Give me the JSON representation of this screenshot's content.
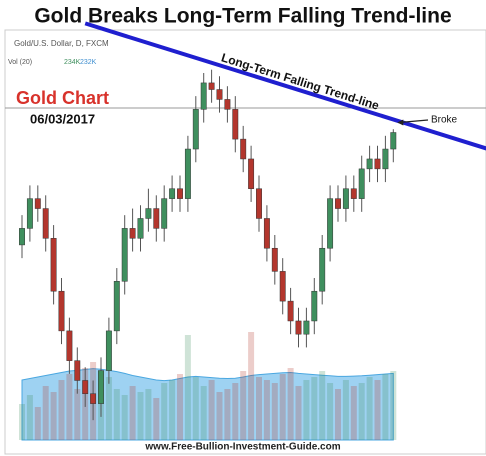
{
  "chart_data": {
    "type": "candlestick",
    "title": "Gold Breaks Long-Term Falling Trend-line",
    "header": "Gold/U.S. Dollar, D, FXCM",
    "volume_label": "Vol (20)",
    "volume_legend": [
      "234K",
      "232K"
    ],
    "chart_label": "Gold Chart",
    "date": "06/03/2017",
    "footer": "www.Free-Bullion-Investment-Guide.com",
    "ylim": [
      1186,
      1310
    ],
    "open": [
      1245,
      1250,
      1259,
      1256,
      1247,
      1231,
      1219,
      1210,
      1204,
      1200,
      1197,
      1207,
      1219,
      1234,
      1250,
      1247,
      1253,
      1256,
      1250,
      1259,
      1262,
      1259,
      1274,
      1286,
      1294,
      1292,
      1289,
      1286,
      1277,
      1271,
      1262,
      1253,
      1244,
      1237,
      1228,
      1222,
      1218,
      1222,
      1231,
      1244,
      1259,
      1256,
      1262,
      1259,
      1268,
      1271,
      1268,
      1274
    ],
    "high": [
      1254,
      1263,
      1263,
      1260,
      1251,
      1235,
      1223,
      1214,
      1208,
      1204,
      1211,
      1223,
      1238,
      1254,
      1256,
      1257,
      1262,
      1260,
      1263,
      1266,
      1266,
      1278,
      1290,
      1297,
      1298,
      1296,
      1293,
      1290,
      1281,
      1275,
      1266,
      1257,
      1248,
      1241,
      1232,
      1226,
      1226,
      1235,
      1248,
      1263,
      1263,
      1266,
      1266,
      1272,
      1275,
      1275,
      1278,
      1280
    ],
    "low": [
      1241,
      1246,
      1252,
      1243,
      1227,
      1215,
      1206,
      1200,
      1196,
      1192,
      1193,
      1203,
      1215,
      1230,
      1243,
      1243,
      1249,
      1246,
      1246,
      1255,
      1255,
      1255,
      1270,
      1282,
      1288,
      1285,
      1282,
      1273,
      1267,
      1258,
      1249,
      1240,
      1233,
      1224,
      1218,
      1214,
      1214,
      1218,
      1227,
      1240,
      1252,
      1252,
      1255,
      1255,
      1264,
      1264,
      1264,
      1270
    ],
    "close": [
      1250,
      1259,
      1256,
      1247,
      1231,
      1219,
      1210,
      1204,
      1200,
      1197,
      1207,
      1219,
      1234,
      1250,
      1247,
      1253,
      1256,
      1250,
      1259,
      1262,
      1259,
      1274,
      1286,
      1294,
      1292,
      1289,
      1286,
      1277,
      1271,
      1262,
      1253,
      1244,
      1237,
      1228,
      1222,
      1218,
      1222,
      1231,
      1244,
      1259,
      1256,
      1262,
      1259,
      1268,
      1271,
      1268,
      1274,
      1279
    ],
    "volume": [
      120,
      150,
      110,
      180,
      160,
      200,
      220,
      170,
      240,
      260,
      190,
      210,
      170,
      150,
      180,
      160,
      170,
      140,
      190,
      200,
      220,
      350,
      210,
      180,
      200,
      160,
      170,
      190,
      230,
      360,
      210,
      200,
      190,
      220,
      240,
      180,
      200,
      210,
      230,
      190,
      170,
      200,
      180,
      190,
      210,
      200,
      220,
      230
    ],
    "volume_ma": [
      200,
      205,
      210,
      215,
      220,
      225,
      230,
      232,
      235,
      238,
      236,
      232,
      228,
      222,
      215,
      210,
      205,
      200,
      198,
      200,
      205,
      210,
      212,
      210,
      208,
      206,
      205,
      206,
      210,
      215,
      218,
      220,
      222,
      224,
      225,
      222,
      220,
      218,
      216,
      214,
      212,
      212,
      213,
      214,
      216,
      218,
      220,
      222
    ],
    "volume_lim": [
      0,
      500
    ],
    "colors": {
      "up": "#3f8f5e",
      "down": "#b3362d",
      "volume_ma": "#7ec3ee",
      "trendline": "#1f1fcf"
    },
    "trendline": {
      "label": "Long-Term Falling Trend-line",
      "x": [
        8,
        59
      ],
      "y": [
        1312,
        1274
      ]
    },
    "annotation": {
      "text": "Broke",
      "x": 47
    }
  }
}
